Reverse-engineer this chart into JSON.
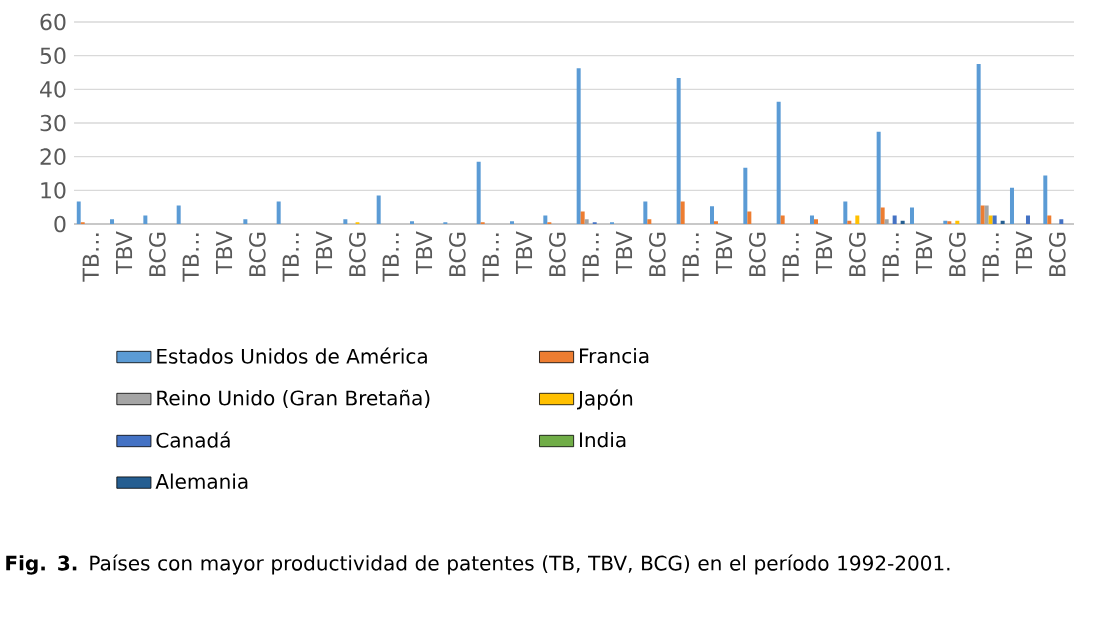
{
  "chart_data": {
    "type": "bar",
    "categories": [
      "TB…",
      "TBV",
      "BCG",
      "TB…",
      "TBV",
      "BCG",
      "TB…",
      "TBV",
      "BCG",
      "TB…",
      "TBV",
      "BCG",
      "TB…",
      "TBV",
      "BCG",
      "TB…",
      "TBV",
      "BCG",
      "TB…",
      "TBV",
      "BCG",
      "TB…",
      "TBV",
      "BCG",
      "TB…",
      "TBV",
      "BCG",
      "TB…",
      "TBV",
      "BCG"
    ],
    "series": [
      {
        "name": "Estados Unidos de América",
        "color": "#5b9bd5",
        "values": [
          6.7,
          1.4,
          2.5,
          5.5,
          null,
          1.4,
          6.7,
          null,
          1.4,
          8.5,
          0.8,
          0.5,
          18.5,
          0.8,
          2.5,
          46.3,
          0.5,
          6.7,
          43.4,
          5.3,
          16.7,
          36.3,
          2.5,
          6.7,
          27.4,
          4.9,
          1,
          47.5,
          10.8,
          14.4
        ]
      },
      {
        "name": "Francia",
        "color": "#ed7d31",
        "values": [
          0.5,
          null,
          null,
          null,
          null,
          null,
          null,
          null,
          null,
          null,
          null,
          null,
          0.5,
          null,
          0.5,
          3.7,
          null,
          1.4,
          6.7,
          0.8,
          3.7,
          2.5,
          1.4,
          1,
          4.9,
          null,
          0.8,
          5.5,
          null,
          2.5
        ]
      },
      {
        "name": "Reino Unido (Gran Bretaña)",
        "color": "#a5a5a5",
        "values": [
          null,
          null,
          null,
          null,
          null,
          null,
          null,
          null,
          null,
          null,
          null,
          null,
          null,
          null,
          null,
          1.4,
          null,
          null,
          null,
          null,
          null,
          null,
          null,
          null,
          1.4,
          null,
          null,
          5.5,
          null,
          null
        ]
      },
      {
        "name": "Japón",
        "color": "#ffc000",
        "values": [
          null,
          null,
          null,
          null,
          null,
          null,
          null,
          null,
          0.5,
          null,
          null,
          null,
          null,
          null,
          null,
          null,
          null,
          null,
          null,
          null,
          null,
          null,
          null,
          2.5,
          null,
          null,
          1,
          2.5,
          null,
          null
        ]
      },
      {
        "name": "Canadá",
        "color": "#4472c4",
        "values": [
          null,
          null,
          null,
          null,
          null,
          null,
          null,
          null,
          null,
          null,
          null,
          null,
          null,
          null,
          null,
          0.5,
          null,
          null,
          null,
          null,
          null,
          null,
          null,
          null,
          2.5,
          null,
          null,
          2.5,
          2.5,
          1.4
        ]
      },
      {
        "name": "India",
        "color": "#70ad47",
        "values": [
          null,
          null,
          null,
          null,
          null,
          null,
          null,
          null,
          null,
          null,
          null,
          null,
          null,
          null,
          null,
          null,
          null,
          null,
          null,
          null,
          null,
          null,
          null,
          null,
          null,
          null,
          null,
          null,
          null,
          null
        ]
      },
      {
        "name": "Alemania",
        "color": "#255e91",
        "values": [
          null,
          null,
          null,
          null,
          null,
          null,
          null,
          null,
          null,
          null,
          null,
          null,
          null,
          null,
          null,
          null,
          null,
          null,
          null,
          null,
          null,
          null,
          null,
          null,
          1,
          null,
          null,
          1,
          null,
          null
        ]
      }
    ],
    "ylim": [
      0,
      60
    ],
    "yticks": [
      0,
      10,
      20,
      30,
      40,
      50,
      60
    ],
    "grid": "y",
    "legend": "bottom",
    "annotations": [
      "**Fig. 3.** Países con mayor productividad de patentes (TB, TBV, BCG) en el período 1992-2001."
    ]
  }
}
